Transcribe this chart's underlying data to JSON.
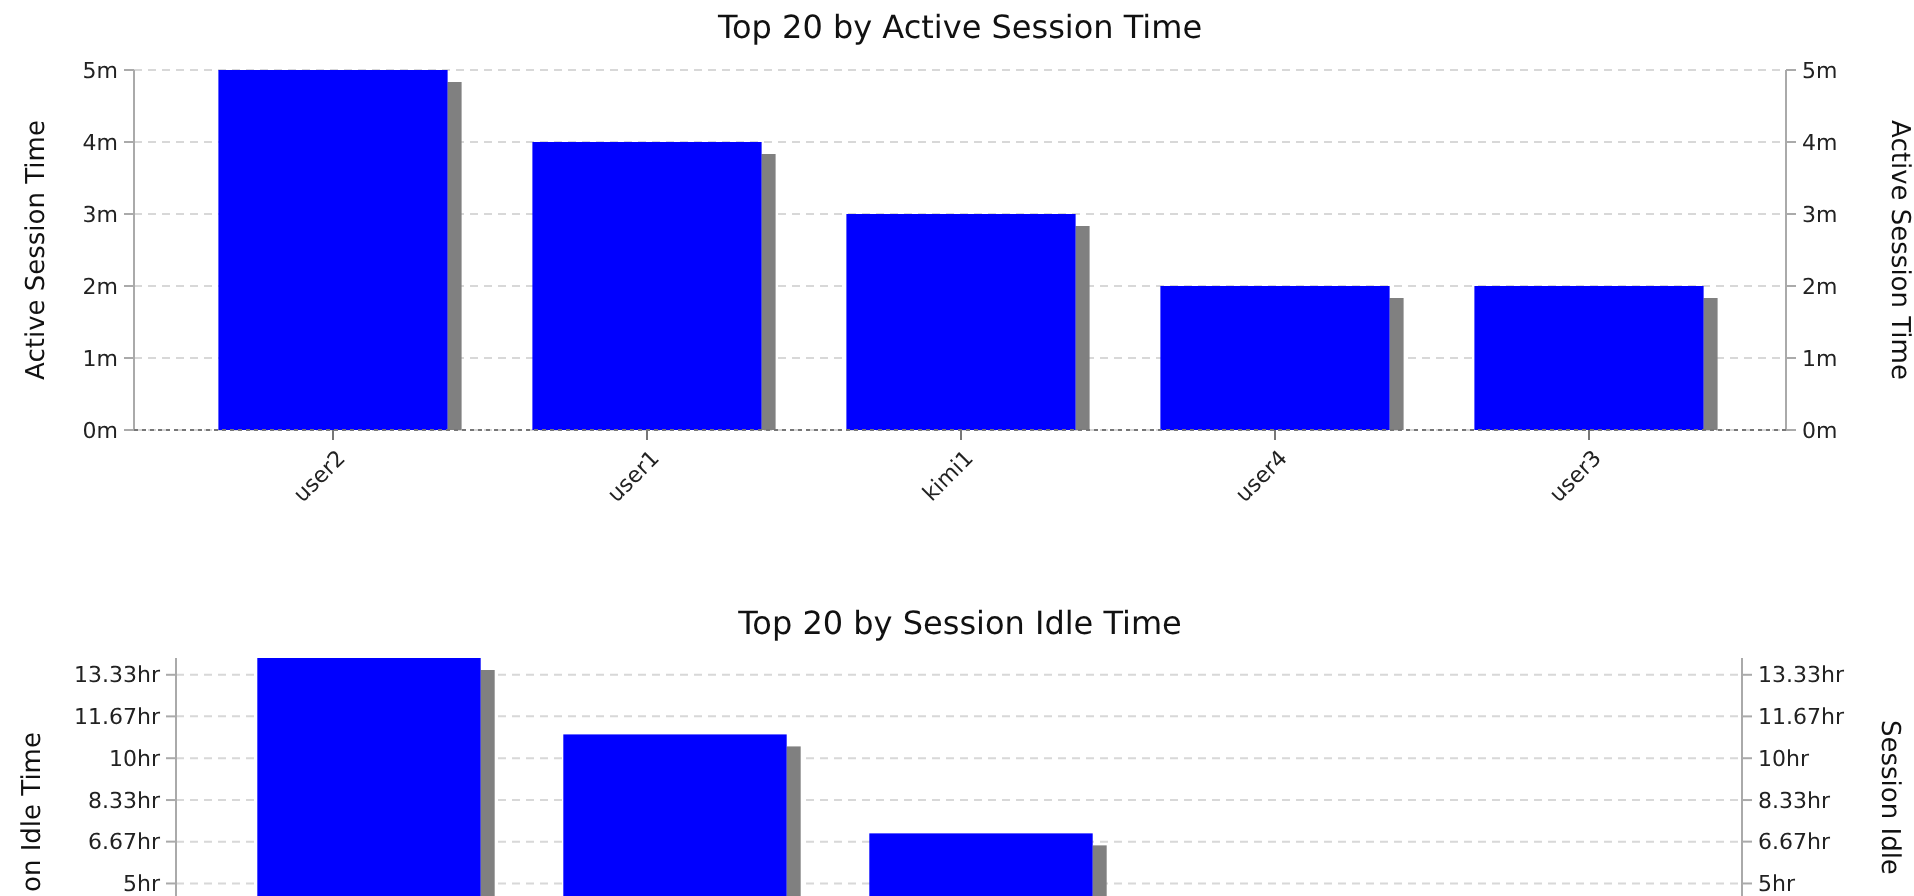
{
  "chart_data": [
    {
      "type": "bar",
      "title": "Top 20 by Active Session Time",
      "ylabel": "Active Session Time",
      "y2label": "Active Session Time",
      "categories": [
        "user2",
        "user1",
        "kimi1",
        "user4",
        "user3"
      ],
      "values": [
        5,
        4,
        3,
        2,
        2
      ],
      "color": "#0000ff",
      "ylim": [
        0,
        5
      ],
      "yticks": [
        {
          "value": 0,
          "label": "0m"
        },
        {
          "value": 1,
          "label": "1m"
        },
        {
          "value": 2,
          "label": "2m"
        },
        {
          "value": 3,
          "label": "3m"
        },
        {
          "value": 4,
          "label": "4m"
        },
        {
          "value": 5,
          "label": "5m"
        }
      ],
      "y2lim": [
        0,
        5
      ],
      "y2ticks": [
        {
          "value": 0,
          "label": "0m"
        },
        {
          "value": 1,
          "label": "1m"
        },
        {
          "value": 2,
          "label": "2m"
        },
        {
          "value": 3,
          "label": "3m"
        },
        {
          "value": 4,
          "label": "4m"
        },
        {
          "value": 5,
          "label": "5m"
        }
      ],
      "grid": "y"
    },
    {
      "type": "bar",
      "title": "Top 20 by Session Idle Time",
      "ylabel": "on Idle Time",
      "y2label": "Session Idle",
      "categories": [
        null,
        null,
        null,
        null,
        null
      ],
      "values": [
        14,
        10.95,
        7,
        null,
        null
      ],
      "color": "#0000ff",
      "ylim": [
        4.5,
        14
      ],
      "yticks": [
        {
          "value": 5,
          "label": "5hr"
        },
        {
          "value": 6.67,
          "label": "6.67hr"
        },
        {
          "value": 8.33,
          "label": "8.33hr"
        },
        {
          "value": 10,
          "label": "10hr"
        },
        {
          "value": 11.67,
          "label": "11.67hr"
        },
        {
          "value": 13.33,
          "label": "13.33hr"
        }
      ],
      "y2lim": [
        4.5,
        14
      ],
      "y2ticks": [
        {
          "value": 5,
          "label": "5hr"
        },
        {
          "value": 6.67,
          "label": "6.67hr"
        },
        {
          "value": 8.33,
          "label": "8.33hr"
        },
        {
          "value": 10,
          "label": "10hr"
        },
        {
          "value": 11.67,
          "label": "11.67hr"
        },
        {
          "value": 13.33,
          "label": "13.33hr"
        }
      ],
      "grid": "y"
    }
  ]
}
